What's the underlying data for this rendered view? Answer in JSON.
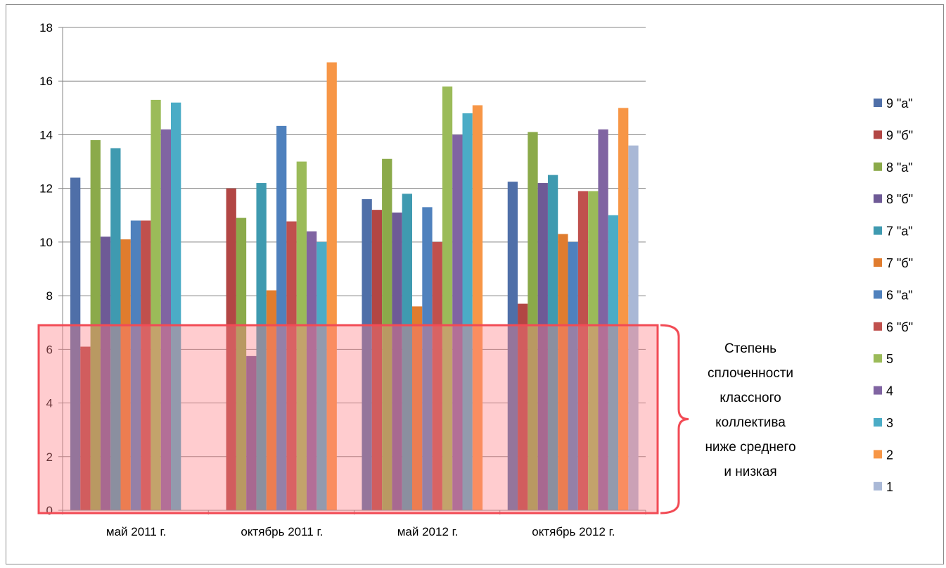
{
  "chart_data": {
    "type": "bar",
    "title": "",
    "xlabel": "",
    "ylabel": "",
    "ylim": [
      0,
      18
    ],
    "yticks": [
      0,
      2,
      4,
      6,
      8,
      10,
      12,
      14,
      16,
      18
    ],
    "grid": true,
    "legend_position": "right",
    "categories": [
      "май 2011 г.",
      "октябрь 2011 г.",
      "май 2012 г.",
      "октябрь 2012 г."
    ],
    "series": [
      {
        "name": "9 \"а\"",
        "color": "#4F6FA8",
        "values": [
          12.4,
          null,
          11.6,
          12.25
        ]
      },
      {
        "name": "9 \"б\"",
        "color": "#B24644",
        "values": [
          6.1,
          12.0,
          11.2,
          7.7
        ]
      },
      {
        "name": "8 \"а\"",
        "color": "#8BAA4A",
        "values": [
          13.8,
          10.9,
          13.1,
          14.1
        ]
      },
      {
        "name": "8 \"б\"",
        "color": "#6E5A96",
        "values": [
          10.2,
          5.75,
          11.1,
          12.2
        ]
      },
      {
        "name": "7 \"а\"",
        "color": "#3F9AB0",
        "values": [
          13.5,
          12.2,
          11.8,
          12.5
        ]
      },
      {
        "name": "7 \"б\"",
        "color": "#E07C2E",
        "values": [
          10.1,
          8.2,
          7.6,
          10.3
        ]
      },
      {
        "name": "6 \"а\"",
        "color": "#4F81BD",
        "values": [
          10.8,
          14.33,
          11.3,
          10.0
        ]
      },
      {
        "name": "6 \"б\"",
        "color": "#C0504D",
        "values": [
          10.8,
          10.77,
          10.0,
          11.9
        ]
      },
      {
        "name": "5",
        "color": "#9BBB59",
        "values": [
          15.3,
          13.0,
          15.8,
          11.9
        ]
      },
      {
        "name": "4",
        "color": "#8064A2",
        "values": [
          14.2,
          10.4,
          14.0,
          14.2
        ]
      },
      {
        "name": "3",
        "color": "#4BACC6",
        "values": [
          15.2,
          10.0,
          14.8,
          11.0
        ]
      },
      {
        "name": "2",
        "color": "#F79646",
        "values": [
          null,
          16.7,
          15.1,
          15.0
        ]
      },
      {
        "name": "1",
        "color": "#A9B8D6",
        "values": [
          null,
          null,
          null,
          13.6
        ]
      }
    ],
    "highlight": {
      "range": [
        0,
        6.9
      ],
      "fill": "#FF7F87",
      "stroke": "#F24B55",
      "annotation": [
        "Степень",
        "сплоченности",
        "классного",
        "коллектива",
        "ниже среднего",
        "и низкая"
      ]
    }
  }
}
